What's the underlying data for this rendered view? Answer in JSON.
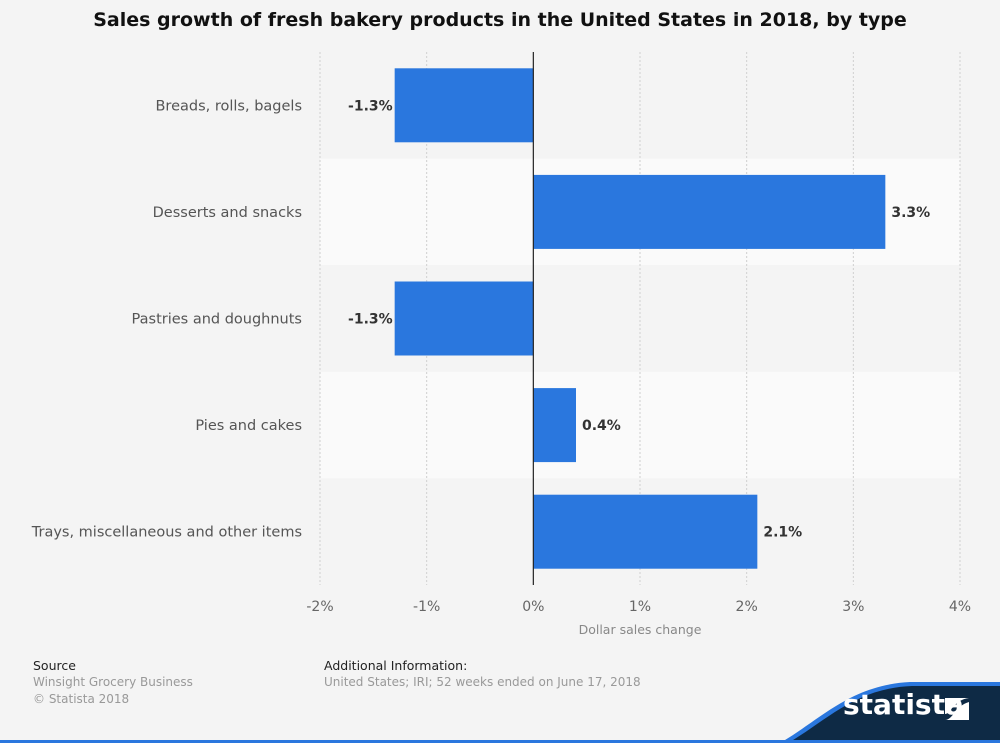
{
  "chart_data": {
    "type": "bar",
    "orientation": "horizontal",
    "title": "Sales growth of fresh bakery products in the United States in 2018, by type",
    "categories": [
      "Breads, rolls, bagels",
      "Desserts and snacks",
      "Pastries and doughnuts",
      "Pies and cakes",
      "Trays, miscellaneous and other items"
    ],
    "values": [
      -1.3,
      3.3,
      -1.3,
      0.4,
      2.1
    ],
    "data_labels": [
      "-1.3%",
      "3.3%",
      "-1.3%",
      "0.4%",
      "2.1%"
    ],
    "xlabel": "Dollar sales change",
    "xlim": [
      -2,
      4
    ],
    "x_ticks": [
      -2,
      -1,
      0,
      1,
      2,
      3,
      4
    ],
    "x_tick_labels": [
      "-2%",
      "-1%",
      "0%",
      "1%",
      "2%",
      "3%",
      "4%"
    ],
    "grid": true,
    "bar_color": "#2a77de"
  },
  "footer": {
    "source_heading": "Source",
    "source_lines": [
      "Winsight Grocery Business",
      "© Statista 2018"
    ],
    "info_heading": "Additional Information:",
    "info_text": "United States; IRI; 52 weeks ended on June 17, 2018",
    "logo": "statista"
  }
}
